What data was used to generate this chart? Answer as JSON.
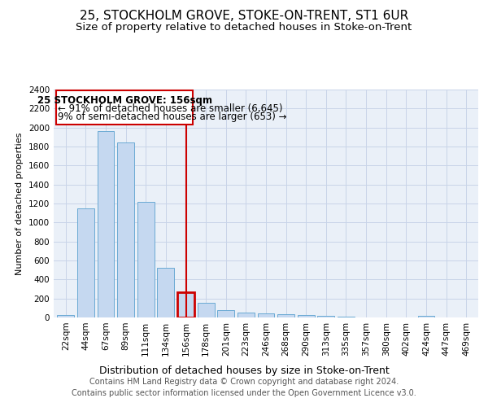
{
  "title": "25, STOCKHOLM GROVE, STOKE-ON-TRENT, ST1 6UR",
  "subtitle": "Size of property relative to detached houses in Stoke-on-Trent",
  "xlabel": "Distribution of detached houses by size in Stoke-on-Trent",
  "ylabel": "Number of detached properties",
  "footer_line1": "Contains HM Land Registry data © Crown copyright and database right 2024.",
  "footer_line2": "Contains public sector information licensed under the Open Government Licence v3.0.",
  "annotation_line1": "25 STOCKHOLM GROVE: 156sqm",
  "annotation_line2": "← 91% of detached houses are smaller (6,645)",
  "annotation_line3": "9% of semi-detached houses are larger (653) →",
  "bar_labels": [
    "22sqm",
    "44sqm",
    "67sqm",
    "89sqm",
    "111sqm",
    "134sqm",
    "156sqm",
    "178sqm",
    "201sqm",
    "223sqm",
    "246sqm",
    "268sqm",
    "290sqm",
    "313sqm",
    "335sqm",
    "357sqm",
    "380sqm",
    "402sqm",
    "424sqm",
    "447sqm",
    "469sqm"
  ],
  "bar_values": [
    30,
    1150,
    1960,
    1840,
    1220,
    520,
    265,
    155,
    80,
    50,
    45,
    35,
    22,
    18,
    12,
    0,
    0,
    0,
    18,
    0,
    0
  ],
  "bar_color": "#c5d8f0",
  "bar_edge_color": "#6aaad4",
  "highlight_bar_index": 6,
  "highlight_color": "#cc0000",
  "ylim": [
    0,
    2400
  ],
  "yticks": [
    0,
    200,
    400,
    600,
    800,
    1000,
    1200,
    1400,
    1600,
    1800,
    2000,
    2200,
    2400
  ],
  "grid_color": "#c8d4e8",
  "axes_bg": "#eaf0f8",
  "title_fontsize": 11,
  "subtitle_fontsize": 9.5,
  "xlabel_fontsize": 9,
  "ylabel_fontsize": 8,
  "tick_fontsize": 7.5,
  "annotation_fontsize": 8.5,
  "footer_fontsize": 7
}
